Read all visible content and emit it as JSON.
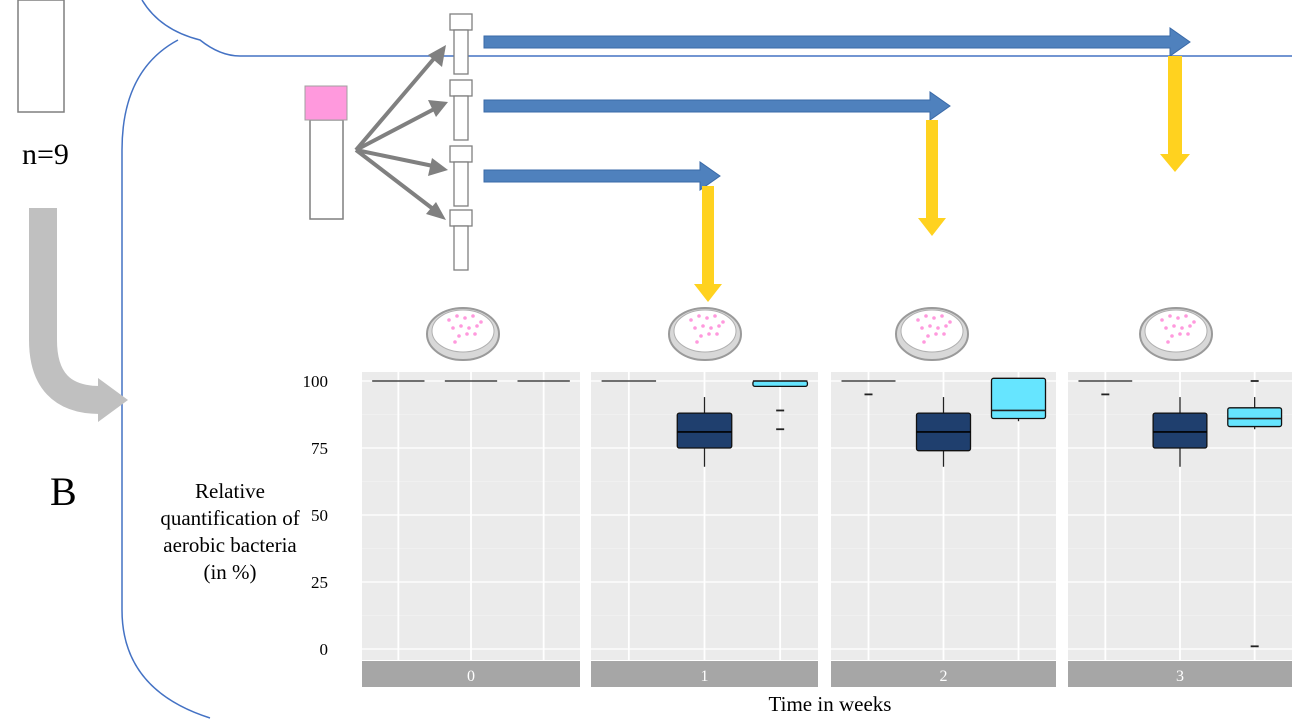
{
  "colors": {
    "frame_line": "#4472c4",
    "tube_outline": "#7f7f7f",
    "cap_pink": "#ff99dd",
    "arrow_grey": "#808080",
    "blue_arrow": "#4f81bd",
    "yellow_arrow": "#ffd21f",
    "panel_bg": "#ebebeb",
    "strip_bg": "#a6a6a6",
    "box_dark": "#1f3f6e",
    "box_light": "#66e5ff",
    "band_pink": "#ddc3d3",
    "band_blue": "#93aac9",
    "band_cyan": "#a9d3e2"
  },
  "icons": [
    "tube-icon",
    "petri-dish-icon",
    "big-curved-arrow-icon",
    "blue-arrow-icon",
    "yellow-arrow-icon"
  ],
  "labels": {
    "n": "n=9",
    "panel_letter": "B"
  },
  "chart_data": {
    "type": "box",
    "ylabel": "Relative quantification of aerobic bacteria (in %)",
    "xlabel": "Time in weeks",
    "y_ticks": [
      0,
      25,
      50,
      75,
      100
    ],
    "ylim": [
      0,
      100
    ],
    "grid": true,
    "facets": [
      {
        "label": "0",
        "background_bands": [
          "pink",
          "blue",
          "cyan"
        ],
        "boxes": [
          {
            "group": 1,
            "median": 100,
            "q1": 100,
            "q3": 100,
            "whisker_low": 100,
            "whisker_high": 100
          },
          {
            "group": 2,
            "median": 100,
            "q1": 100,
            "q3": 100,
            "whisker_low": 100,
            "whisker_high": 100
          },
          {
            "group": 3,
            "median": 100,
            "q1": 100,
            "q3": 100,
            "whisker_low": 100,
            "whisker_high": 100
          }
        ]
      },
      {
        "label": "1",
        "boxes": [
          {
            "group": 1,
            "median": 100,
            "q1": 100,
            "q3": 100,
            "whisker_low": 100,
            "whisker_high": 100
          },
          {
            "group": 2,
            "median": 81,
            "q1": 75,
            "q3": 88,
            "whisker_low": 68,
            "whisker_high": 94
          },
          {
            "group": 3,
            "median": 100,
            "q1": 98,
            "q3": 100,
            "whisker_low": 98,
            "whisker_high": 100,
            "outliers": [
              89,
              82
            ]
          }
        ]
      },
      {
        "label": "2",
        "boxes": [
          {
            "group": 1,
            "median": 100,
            "q1": 100,
            "q3": 100,
            "whisker_low": 100,
            "whisker_high": 100,
            "outliers": [
              95
            ]
          },
          {
            "group": 2,
            "median": 81,
            "q1": 74,
            "q3": 88,
            "whisker_low": 68,
            "whisker_high": 94
          },
          {
            "group": 3,
            "median": 89,
            "q1": 86,
            "q3": 101,
            "whisker_low": 85,
            "whisker_high": 101
          }
        ]
      },
      {
        "label": "3",
        "boxes": [
          {
            "group": 1,
            "median": 100,
            "q1": 100,
            "q3": 100,
            "whisker_low": 100,
            "whisker_high": 100,
            "outliers": [
              95
            ]
          },
          {
            "group": 2,
            "median": 81,
            "q1": 75,
            "q3": 88,
            "whisker_low": 68,
            "whisker_high": 94
          },
          {
            "group": 3,
            "median": 86,
            "q1": 83,
            "q3": 90,
            "whisker_low": 82,
            "whisker_high": 94,
            "outliers": [
              100,
              1
            ]
          }
        ]
      }
    ]
  }
}
